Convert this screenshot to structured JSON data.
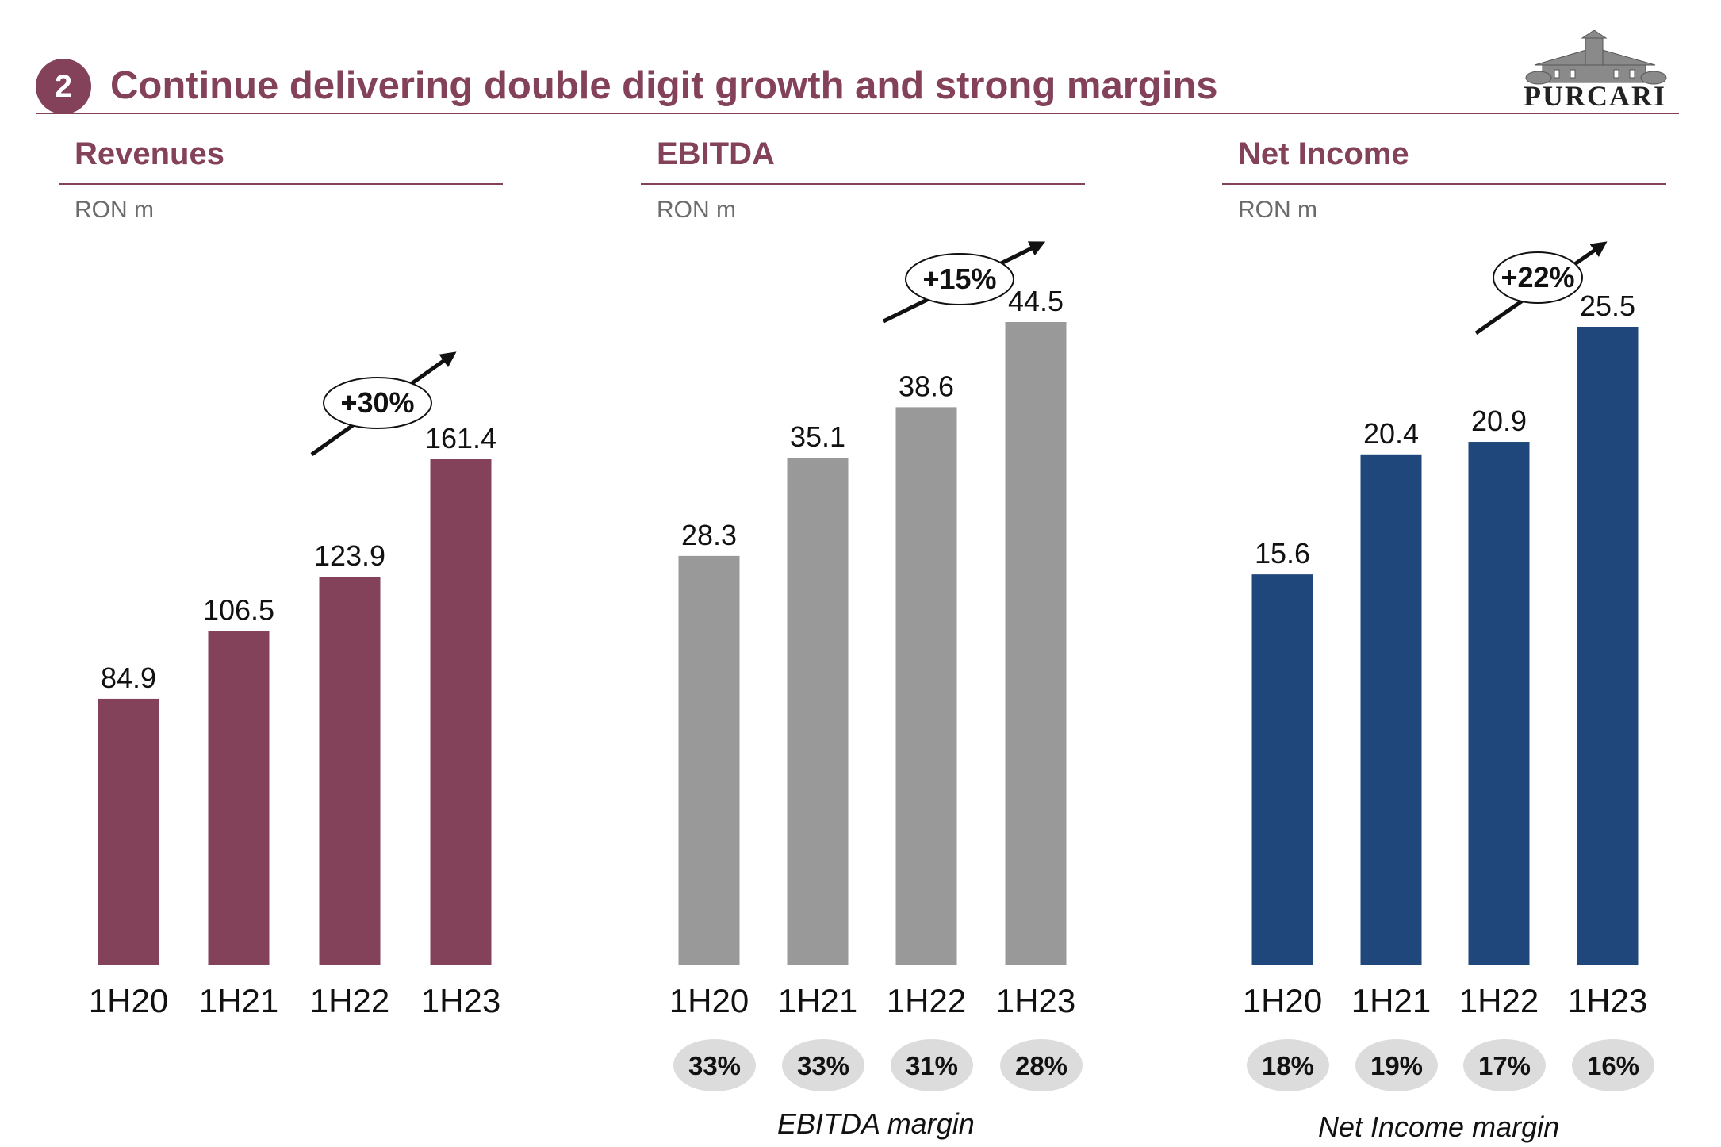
{
  "header": {
    "page_number": "2",
    "title": "Continue delivering double digit growth and strong margins",
    "logo_text": "PURCARI"
  },
  "panels": {
    "revenues": {
      "title": "Revenues",
      "unit": "RON m",
      "growth_label": "+30%"
    },
    "ebitda": {
      "title": "EBITDA",
      "unit": "RON m",
      "growth_label": "+15%",
      "margin_caption": "EBITDA margin"
    },
    "net_income": {
      "title": "Net Income",
      "unit": "RON m",
      "growth_label": "+22%",
      "margin_caption": "Net Income margin"
    }
  },
  "colors": {
    "brand": "#84415a",
    "revenues_bar": "#84415a",
    "ebitda_bar": "#999999",
    "net_income_bar": "#1f477c",
    "margin_pill": "#dcdcdc"
  },
  "chart_data": [
    {
      "type": "bar",
      "title": "Revenues",
      "unit": "RON m",
      "categories": [
        "1H20",
        "1H21",
        "1H22",
        "1H23"
      ],
      "values": [
        84.9,
        106.5,
        123.9,
        161.4
      ],
      "value_labels": [
        "84.9",
        "106.5",
        "123.9",
        "161.4"
      ],
      "growth_annotation": "+30%",
      "grid": false
    },
    {
      "type": "bar",
      "title": "EBITDA",
      "unit": "RON m",
      "categories": [
        "1H20",
        "1H21",
        "1H22",
        "1H23"
      ],
      "values": [
        28.3,
        35.1,
        38.6,
        44.5
      ],
      "value_labels": [
        "28.3",
        "35.1",
        "38.6",
        "44.5"
      ],
      "growth_annotation": "+15%",
      "margins": [
        "33%",
        "33%",
        "31%",
        "28%"
      ],
      "margin_caption": "EBITDA margin",
      "grid": false
    },
    {
      "type": "bar",
      "title": "Net Income",
      "unit": "RON m",
      "categories": [
        "1H20",
        "1H21",
        "1H22",
        "1H23"
      ],
      "values": [
        15.6,
        20.4,
        20.9,
        25.5
      ],
      "value_labels": [
        "15.6",
        "20.4",
        "20.9",
        "25.5"
      ],
      "growth_annotation": "+22%",
      "margins": [
        "18%",
        "19%",
        "17%",
        "16%"
      ],
      "margin_caption": "Net Income margin",
      "grid": false
    }
  ]
}
